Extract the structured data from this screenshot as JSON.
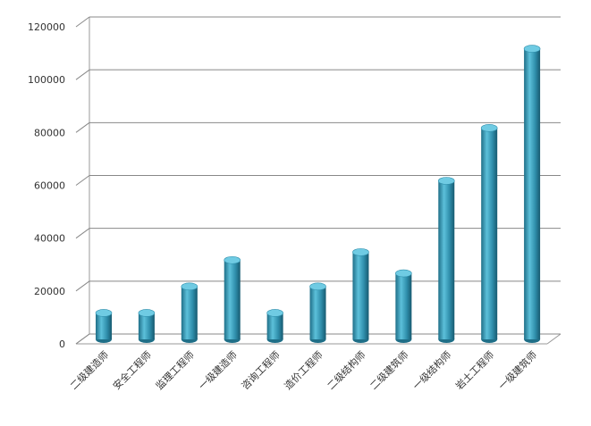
{
  "chart_data": {
    "type": "bar",
    "categories": [
      "二级建造师",
      "安全工程师",
      "监理工程师",
      "一级建造师",
      "咨询工程师",
      "造价工程师",
      "二级结构师",
      "二级建筑师",
      "一级结构师",
      "岩土工程师",
      "一级建筑师"
    ],
    "values": [
      10000,
      10000,
      20000,
      30000,
      10000,
      20000,
      33000,
      25000,
      60000,
      80000,
      110000
    ],
    "color": "#3a9bb8",
    "ylim": [
      0,
      120000
    ],
    "yticks": [
      0,
      20000,
      40000,
      60000,
      80000,
      100000,
      120000
    ],
    "grid": true
  }
}
